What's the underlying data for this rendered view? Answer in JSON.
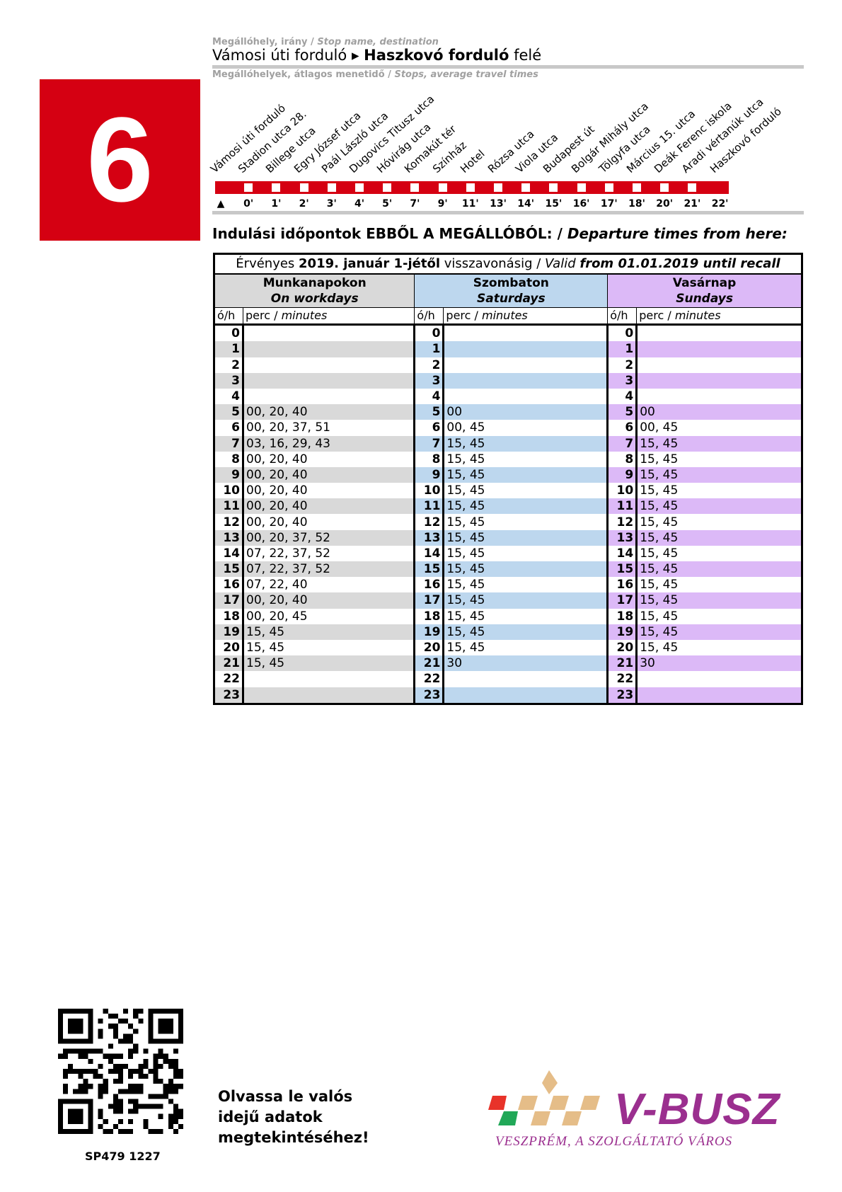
{
  "header": {
    "stop_label": "Megállóhely, irány / ",
    "stop_label_en": "Stop name, destination",
    "from": "Vámosi úti forduló",
    "arrow": "▸",
    "to": "Haszkovó forduló",
    "to_suffix": " felé",
    "stops_label": "Megállóhelyek, átlagos menetidő / ",
    "stops_label_en": "Stops, average travel times"
  },
  "route": {
    "number": "6",
    "color": "#d50012"
  },
  "stops": [
    {
      "name": "Vámosi úti forduló",
      "min": "▲"
    },
    {
      "name": "Stadion utca 28.",
      "min": "0'"
    },
    {
      "name": "Billege utca",
      "min": "1'"
    },
    {
      "name": "Egry József utca",
      "min": "2'"
    },
    {
      "name": "Paál László utca",
      "min": "3'"
    },
    {
      "name": "Dugovics Titusz utca",
      "min": "4'"
    },
    {
      "name": "Hóvirág utca",
      "min": "5'"
    },
    {
      "name": "Komakút tér",
      "min": "7'"
    },
    {
      "name": "Színház",
      "min": "9'"
    },
    {
      "name": "Hotel",
      "min": "11'"
    },
    {
      "name": "Rózsa utca",
      "min": "13'"
    },
    {
      "name": "Viola utca",
      "min": "14'"
    },
    {
      "name": "Budapest út",
      "min": "15'"
    },
    {
      "name": "Bolgár Mihály utca",
      "min": "16'"
    },
    {
      "name": "Tölgyfa utca",
      "min": "17'"
    },
    {
      "name": "Március 15. utca",
      "min": "18'"
    },
    {
      "name": "Deák Ferenc iskola",
      "min": "20'"
    },
    {
      "name": "Aradi vértanúk utca",
      "min": "21'"
    },
    {
      "name": "Haszkovó forduló",
      "min": "22'"
    }
  ],
  "departures_heading": {
    "hu": "Indulási időpontok EBBŐL A MEGÁLLÓBÓL: / ",
    "en": "Departure times from here:"
  },
  "validity": {
    "a": "Érvényes ",
    "b": "2019. január 1-jétől",
    "c": " visszavonásig / ",
    "d": "Valid ",
    "e": "from 01.01.2019 until recall"
  },
  "columns": [
    {
      "hu": "Munkanapokon",
      "en": "On workdays",
      "color": "#d9d9d9"
    },
    {
      "hu": "Szombaton",
      "en": "Saturdays",
      "color": "#bdd7ee"
    },
    {
      "hu": "Vasárnap",
      "en": "Sundays",
      "color": "#dcb9f7"
    }
  ],
  "subheader": {
    "hour": "ó/h",
    "minutes": "perc / ",
    "minutes_en": "minutes"
  },
  "hours": [
    "0",
    "1",
    "2",
    "3",
    "4",
    "5",
    "6",
    "7",
    "8",
    "9",
    "10",
    "11",
    "12",
    "13",
    "14",
    "15",
    "16",
    "17",
    "18",
    "19",
    "20",
    "21",
    "22",
    "23"
  ],
  "workdays": [
    "",
    "",
    "",
    "",
    "",
    "00, 20, 40",
    "00, 20, 37, 51",
    "03, 16, 29, 43",
    "00, 20, 40",
    "00, 20, 40",
    "00, 20, 40",
    "00, 20, 40",
    "00, 20, 40",
    "00, 20, 37, 52",
    "07, 22, 37, 52",
    "07, 22, 37, 52",
    "07, 22, 40",
    "00, 20, 40",
    "00, 20, 45",
    "15, 45",
    "15, 45",
    "15, 45",
    "",
    ""
  ],
  "saturdays": [
    "",
    "",
    "",
    "",
    "",
    "00",
    "00, 45",
    "15, 45",
    "15, 45",
    "15, 45",
    "15, 45",
    "15, 45",
    "15, 45",
    "15, 45",
    "15, 45",
    "15, 45",
    "15, 45",
    "15, 45",
    "15, 45",
    "15, 45",
    "15, 45",
    "30",
    "",
    ""
  ],
  "sundays": [
    "",
    "",
    "",
    "",
    "",
    "00",
    "00, 45",
    "15, 45",
    "15, 45",
    "15, 45",
    "15, 45",
    "15, 45",
    "15, 45",
    "15, 45",
    "15, 45",
    "15, 45",
    "15, 45",
    "15, 45",
    "15, 45",
    "15, 45",
    "15, 45",
    "30",
    "",
    ""
  ],
  "footer": {
    "qr_text": [
      "Olvassa le valós",
      "idejű adatok",
      "megtekintéséhez!"
    ],
    "code": "SP479 1227",
    "logo_name": "V-BUSZ",
    "logo_tagline": "VESZPRÉM, A SZOLGÁLTATÓ VÁROS",
    "logo_color": "#9b2f8f"
  }
}
